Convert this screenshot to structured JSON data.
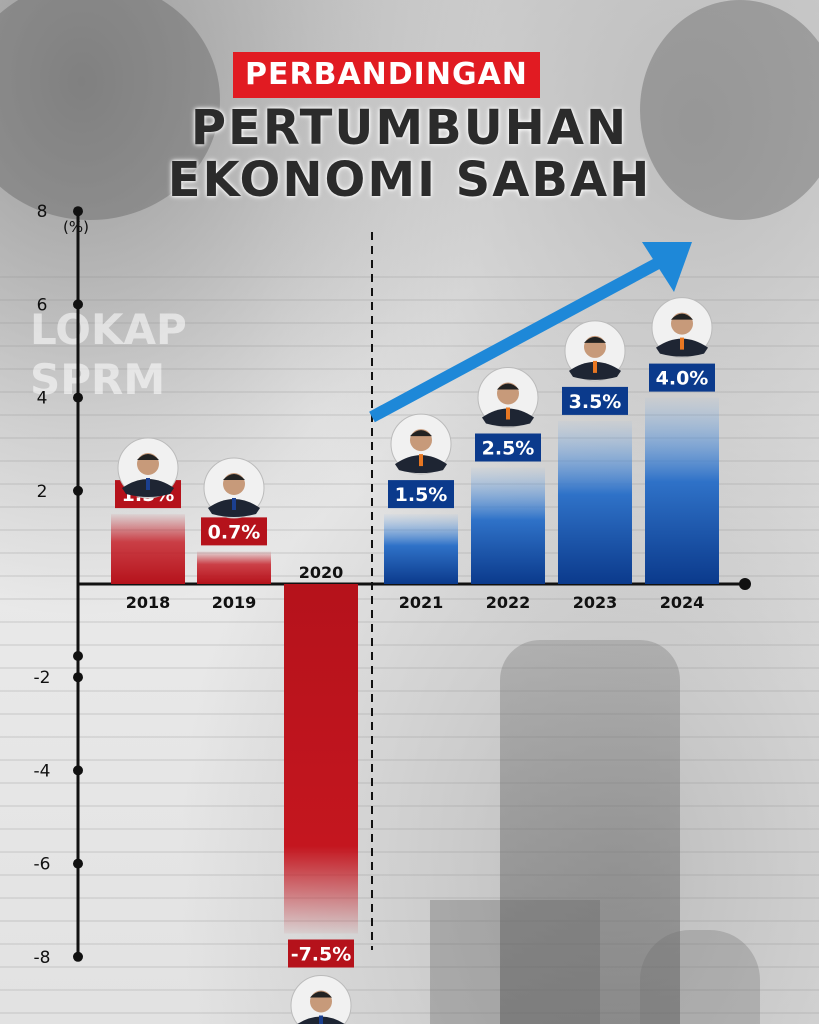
{
  "title": {
    "line1": "PERBANDINGAN",
    "line2": "PERTUMBUHAN",
    "line3": "EKONOMI SABAH"
  },
  "background_text": [
    "LOKAP",
    "SPRM"
  ],
  "colors": {
    "negative": "#b5121b",
    "positive": "#0b3a8c",
    "positive_light": "#4a8ee0",
    "arrow": "#1e88d8",
    "axis": "#111111",
    "title_bg": "#e11b22"
  },
  "chart_data": {
    "type": "bar",
    "title": "PERTUMBUHAN EKONOMI SABAH",
    "ylabel": "(%)",
    "xlabel": "",
    "ylim": [
      -8,
      8
    ],
    "yticks": [
      8,
      6,
      4,
      2,
      -2,
      -4,
      -6,
      -8
    ],
    "categories": [
      "2018",
      "2019",
      "2020",
      "2021",
      "2022",
      "2023",
      "2024"
    ],
    "values": [
      1.5,
      0.7,
      -7.5,
      1.5,
      2.5,
      3.5,
      4.0
    ],
    "data_labels": [
      "1.5%",
      "0.7%",
      "-7.5%",
      "1.5%",
      "2.5%",
      "3.5%",
      "4.0%"
    ],
    "divider_after_category": "2020",
    "trend_arrow": "upward",
    "grid": false
  }
}
